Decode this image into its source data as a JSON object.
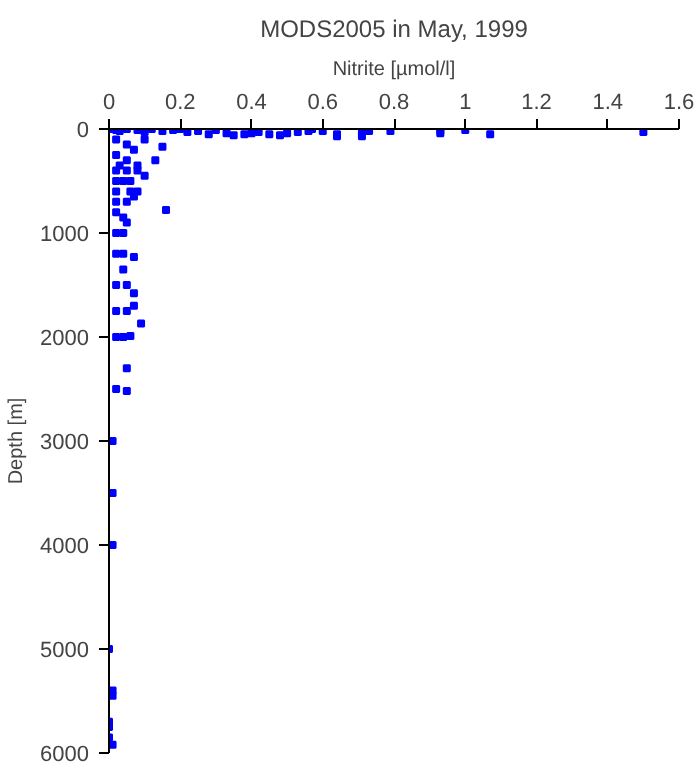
{
  "chart_data": {
    "type": "scatter",
    "title": "MODS2005 in May, 1999",
    "xlabel": "Nitrite [µmol/l]",
    "ylabel": "Depth [m]",
    "xlim": [
      0,
      1.6
    ],
    "xticks": [
      0,
      0.2,
      0.4,
      0.6,
      0.8,
      1,
      1.2,
      1.4,
      1.6
    ],
    "ylim": [
      6000,
      0
    ],
    "yticks": [
      0,
      1000,
      2000,
      3000,
      4000,
      5000,
      6000
    ],
    "grid": false,
    "marker": "square",
    "series": [
      {
        "color": "#0000ff",
        "x": [
          0.01,
          0.02,
          0.03,
          0.05,
          0.08,
          0.1,
          0.12,
          0.15,
          0.18,
          0.2,
          0.22,
          0.25,
          0.28,
          0.3,
          0.33,
          0.35,
          0.38,
          0.4,
          0.42,
          0.45,
          0.48,
          0.5,
          0.53,
          0.56,
          0.57,
          0.6,
          0.64,
          0.64,
          0.71,
          0.71,
          0.73,
          0.79,
          0.93,
          0.93,
          1.0,
          1.07,
          1.5,
          0.02,
          0.05,
          0.1,
          0.15,
          0.07,
          0.02,
          0.05,
          0.13,
          0.08,
          0.03,
          0.02,
          0.05,
          0.08,
          0.1,
          0.02,
          0.04,
          0.06,
          0.02,
          0.06,
          0.08,
          0.02,
          0.05,
          0.07,
          0.16,
          0.02,
          0.04,
          0.05,
          0.02,
          0.04,
          0.02,
          0.04,
          0.07,
          0.04,
          0.02,
          0.05,
          0.07,
          0.02,
          0.05,
          0.07,
          0.09,
          0.02,
          0.04,
          0.06,
          0.05,
          0.02,
          0.05,
          0.01,
          0.01,
          0.01,
          0.0,
          0.01,
          0.01,
          0.0,
          0.0,
          0.0,
          0.01
        ],
        "values": [
          0,
          10,
          20,
          0,
          10,
          30,
          0,
          20,
          10,
          0,
          30,
          20,
          50,
          10,
          40,
          60,
          50,
          40,
          30,
          50,
          60,
          40,
          30,
          20,
          0,
          20,
          50,
          70,
          30,
          70,
          20,
          20,
          20,
          40,
          10,
          50,
          30,
          100,
          150,
          100,
          170,
          200,
          250,
          300,
          300,
          350,
          350,
          400,
          400,
          400,
          450,
          500,
          500,
          500,
          600,
          600,
          600,
          700,
          700,
          650,
          780,
          800,
          850,
          900,
          1000,
          1000,
          1200,
          1200,
          1230,
          1350,
          1500,
          1500,
          1580,
          1750,
          1750,
          1700,
          1870,
          2000,
          2000,
          1990,
          2300,
          2500,
          2520,
          3000,
          3500,
          4000,
          5000,
          5400,
          5450,
          5700,
          5750,
          5850,
          5920
        ]
      }
    ]
  }
}
